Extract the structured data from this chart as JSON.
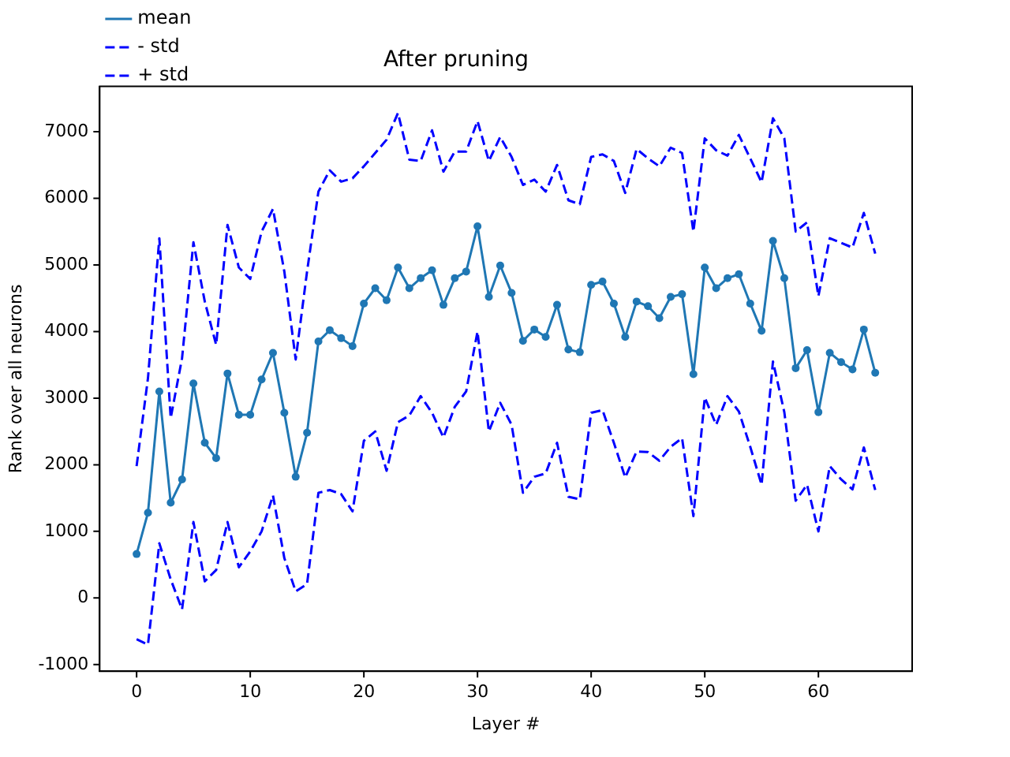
{
  "chart_data": {
    "type": "line",
    "title": "After pruning",
    "xlabel": "Layer #",
    "ylabel": "Rank over all neurons",
    "x": [
      0,
      1,
      2,
      3,
      4,
      5,
      6,
      7,
      8,
      9,
      10,
      11,
      12,
      13,
      14,
      15,
      16,
      17,
      18,
      19,
      20,
      21,
      22,
      23,
      24,
      25,
      26,
      27,
      28,
      29,
      30,
      31,
      32,
      33,
      34,
      35,
      36,
      37,
      38,
      39,
      40,
      41,
      42,
      43,
      44,
      45,
      46,
      47,
      48,
      49,
      50,
      51,
      52,
      53,
      54,
      55,
      56,
      57,
      58,
      59,
      60,
      61,
      62,
      63,
      64,
      65
    ],
    "series": [
      {
        "name": "mean",
        "color": "#1f77b4",
        "marker": "circle",
        "line_style": "solid",
        "values": [
          660,
          1280,
          3100,
          1430,
          1780,
          3220,
          2330,
          2100,
          3370,
          2750,
          2750,
          3280,
          3680,
          2780,
          1820,
          2480,
          3850,
          4020,
          3900,
          3780,
          4420,
          4650,
          4470,
          4960,
          4650,
          4800,
          4920,
          4400,
          4800,
          4900,
          5580,
          4520,
          4990,
          4580,
          3860,
          4030,
          3920,
          4400,
          3730,
          3690,
          4700,
          4750,
          4420,
          3920,
          4450,
          4380,
          4200,
          4520,
          4560,
          3360,
          4960,
          4650,
          4800,
          4860,
          4420,
          4010,
          5360,
          4800,
          3450,
          3720,
          2790,
          3680,
          3540,
          3430,
          4030,
          3380
        ]
      },
      {
        "name": "- std",
        "color": "#0000ff",
        "marker": "none",
        "line_style": "dashed",
        "values": [
          -620,
          -700,
          820,
          280,
          -170,
          1140,
          250,
          420,
          1140,
          460,
          700,
          1000,
          1540,
          600,
          100,
          210,
          1580,
          1620,
          1560,
          1300,
          2360,
          2500,
          1910,
          2640,
          2740,
          3030,
          2780,
          2410,
          2870,
          3100,
          4000,
          2500,
          2930,
          2600,
          1580,
          1820,
          1870,
          2330,
          1520,
          1480,
          2780,
          2820,
          2330,
          1810,
          2200,
          2190,
          2060,
          2270,
          2400,
          1230,
          3010,
          2600,
          3030,
          2800,
          2270,
          1700,
          3550,
          2790,
          1460,
          1700,
          1000,
          1980,
          1780,
          1630,
          2260,
          1620
        ]
      },
      {
        "name": "+ std",
        "color": "#0000ff",
        "marker": "none",
        "line_style": "dashed",
        "values": [
          1980,
          3300,
          5400,
          2700,
          3600,
          5340,
          4450,
          3800,
          5600,
          4960,
          4790,
          5500,
          5840,
          4900,
          3580,
          4900,
          6100,
          6420,
          6250,
          6300,
          6480,
          6680,
          6880,
          7280,
          6580,
          6560,
          7020,
          6400,
          6700,
          6700,
          7160,
          6560,
          6920,
          6620,
          6200,
          6280,
          6100,
          6500,
          5970,
          5910,
          6620,
          6660,
          6560,
          6080,
          6740,
          6600,
          6480,
          6760,
          6680,
          5500,
          6900,
          6720,
          6640,
          6950,
          6600,
          6240,
          7200,
          6900,
          5500,
          5640,
          4530,
          5400,
          5330,
          5260,
          5780,
          5170
        ]
      }
    ],
    "xlim": [
      -3.25,
      68.25
    ],
    "xticks": [
      0,
      10,
      20,
      30,
      40,
      50,
      60
    ],
    "ylim": [
      -1099,
      7679
    ],
    "yticks": [
      -1000,
      0,
      1000,
      2000,
      3000,
      4000,
      5000,
      6000,
      7000
    ],
    "grid": false,
    "legend": "top left"
  }
}
